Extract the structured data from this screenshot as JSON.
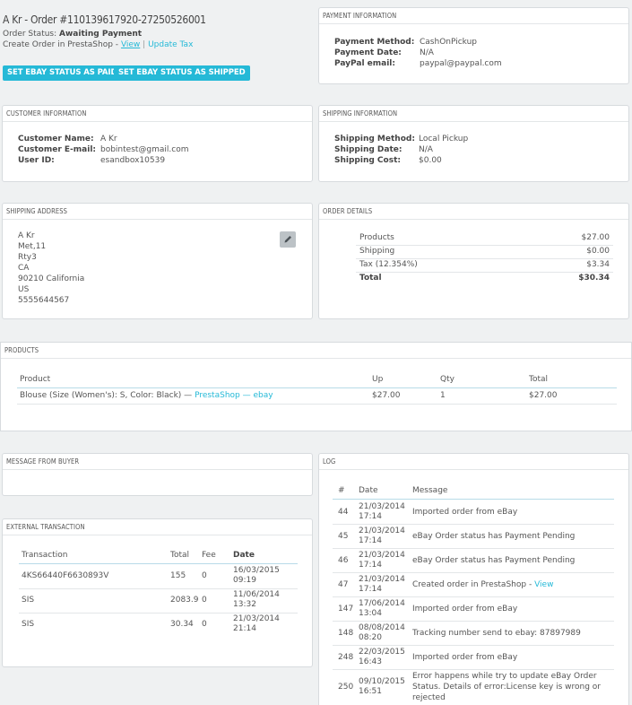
{
  "header": {
    "title": "A Kr - Order #110139617920-27250526001",
    "status_label": "Order Status:",
    "status_value": "Awaiting Payment",
    "create_order_text": "Create Order in PrestaShop -",
    "view_link": "View",
    "separator": "|",
    "update_tax_link": "Update Tax",
    "buttons": {
      "paid": "SET EBAY STATUS AS PAID",
      "shipped": "SET EBAY STATUS AS SHIPPED"
    }
  },
  "payment": {
    "title": "PAYMENT INFORMATION",
    "rows": [
      {
        "label": "Payment Method:",
        "value": "CashOnPickup"
      },
      {
        "label": "Payment Date:",
        "value": "N/A"
      },
      {
        "label": "PayPal email:",
        "value": "paypal@paypal.com"
      }
    ]
  },
  "customer": {
    "title": "CUSTOMER INFORMATION",
    "rows": [
      {
        "label": "Customer Name:",
        "value": "A Kr"
      },
      {
        "label": "Customer E-mail:",
        "value": "bobintest@gmail.com"
      },
      {
        "label": "User ID:",
        "value": "esandbox10539"
      }
    ]
  },
  "shipping_info": {
    "title": "SHIPPING INFORMATION",
    "rows": [
      {
        "label": "Shipping Method:",
        "value": "Local Pickup"
      },
      {
        "label": "Shipping Date:",
        "value": "N/A"
      },
      {
        "label": "Shipping Cost:",
        "value": "$0.00"
      }
    ]
  },
  "shipping_address": {
    "title": "SHIPPING ADDRESS",
    "lines": [
      "A Kr",
      "Met,11",
      "Rty3",
      "CA",
      "90210 California",
      "US",
      "5555644567"
    ]
  },
  "order_details": {
    "title": "ORDER DETAILS",
    "rows": [
      {
        "label": "Products",
        "value": "$27.00"
      },
      {
        "label": "Shipping",
        "value": "$0.00"
      },
      {
        "label": "Tax (12.354%)",
        "value": "$3.34"
      },
      {
        "label": "Total",
        "value": "$30.34"
      }
    ]
  },
  "products": {
    "title": "PRODUCTS",
    "headers": {
      "product": "Product",
      "up": "Up",
      "qty": "Qty",
      "total": "Total"
    },
    "rows": [
      {
        "name": "Blouse (Size (Women's): S, Color: Black) —",
        "link1": "PrestaShop",
        "dash": "—",
        "link2": "ebay",
        "up": "$27.00",
        "qty": "1",
        "total": "$27.00"
      }
    ]
  },
  "message": {
    "title": "MESSAGE FROM BUYER"
  },
  "external": {
    "title": "EXTERNAL TRANSACTION",
    "headers": {
      "transaction": "Transaction",
      "total": "Total",
      "fee": "Fee",
      "date": "Date"
    },
    "rows": [
      {
        "transaction": "4KS66440F6630893V",
        "total": "155",
        "fee": "0",
        "date1": "16/03/2015",
        "date2": "09:19"
      },
      {
        "transaction": "SIS",
        "total": "2083.9",
        "fee": "0",
        "date1": "11/06/2014",
        "date2": "13:32"
      },
      {
        "transaction": "SIS",
        "total": "30.34",
        "fee": "0",
        "date1": "21/03/2014",
        "date2": "21:14"
      }
    ]
  },
  "log": {
    "title": "LOG",
    "headers": {
      "num": "#",
      "date": "Date",
      "message": "Message"
    },
    "rows": [
      {
        "num": "44",
        "date1": "21/03/2014",
        "date2": "17:14",
        "lines": [
          "Imported order from eBay"
        ]
      },
      {
        "num": "45",
        "date1": "21/03/2014",
        "date2": "17:14",
        "lines": [
          "eBay Order status has Payment Pending"
        ]
      },
      {
        "num": "46",
        "date1": "21/03/2014",
        "date2": "17:14",
        "lines": [
          "eBay Order status has Payment Pending"
        ]
      },
      {
        "num": "47",
        "date1": "21/03/2014",
        "date2": "17:14",
        "lines": [
          "Created order in PrestaShop -"
        ],
        "link": "View"
      },
      {
        "num": "147",
        "date1": "17/06/2014",
        "date2": "13:04",
        "lines": [
          "Imported order from eBay"
        ]
      },
      {
        "num": "148",
        "date1": "08/08/2014",
        "date2": "08:20",
        "lines": [
          "Tracking number send to ebay: 87897989"
        ]
      },
      {
        "num": "248",
        "date1": "22/03/2015",
        "date2": "16:43",
        "lines": [
          "Imported order from eBay"
        ]
      },
      {
        "num": "250",
        "date1": "09/10/2015",
        "date2": "16:51",
        "lines": [
          "Error happens while try to update eBay Order",
          "Status. Details of error:License key is wrong or",
          "rejected"
        ]
      }
    ]
  }
}
